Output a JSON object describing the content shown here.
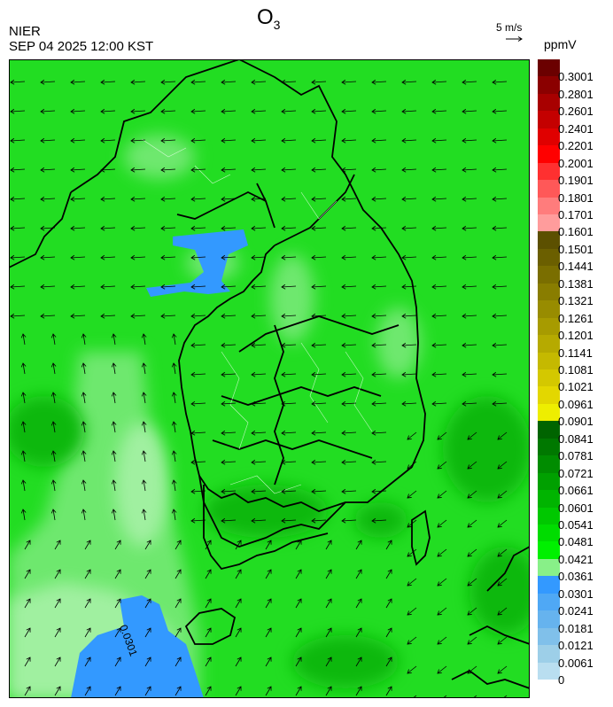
{
  "header": {
    "title_main": "O",
    "title_sub": "3",
    "agency": "NIER",
    "datetime": "SEP 04 2025 12:00 KST",
    "wind_reference": "5 m/s",
    "unit": "ppmV"
  },
  "map": {
    "contour_label": "0.0301",
    "background_color": "#22dd22"
  },
  "legend": {
    "levels": [
      {
        "label": "0.3001",
        "color": "#6b0000"
      },
      {
        "label": "0.2801",
        "color": "#8b0000"
      },
      {
        "label": "0.2601",
        "color": "#a80000"
      },
      {
        "label": "0.2401",
        "color": "#c40000"
      },
      {
        "label": "0.2201",
        "color": "#e00000"
      },
      {
        "label": "0.2001",
        "color": "#ff0000"
      },
      {
        "label": "0.1901",
        "color": "#ff3030"
      },
      {
        "label": "0.1801",
        "color": "#ff5858"
      },
      {
        "label": "0.1701",
        "color": "#ff7c7c"
      },
      {
        "label": "0.1601",
        "color": "#ff9c9c"
      },
      {
        "label": "0.1501",
        "color": "#5c5000"
      },
      {
        "label": "0.1441",
        "color": "#6b5f00"
      },
      {
        "label": "0.1381",
        "color": "#7a6e00"
      },
      {
        "label": "0.1321",
        "color": "#897d00"
      },
      {
        "label": "0.1261",
        "color": "#988c00"
      },
      {
        "label": "0.1201",
        "color": "#a79b00"
      },
      {
        "label": "0.1141",
        "color": "#b6aa00"
      },
      {
        "label": "0.1081",
        "color": "#c5b900"
      },
      {
        "label": "0.1021",
        "color": "#d4c800"
      },
      {
        "label": "0.0961",
        "color": "#e3d700"
      },
      {
        "label": "0.0901",
        "color": "#eeee00"
      },
      {
        "label": "0.0841",
        "color": "#006400"
      },
      {
        "label": "0.0781",
        "color": "#007800"
      },
      {
        "label": "0.0721",
        "color": "#008c00"
      },
      {
        "label": "0.0661",
        "color": "#00a000"
      },
      {
        "label": "0.0601",
        "color": "#00b400"
      },
      {
        "label": "0.0541",
        "color": "#00c800"
      },
      {
        "label": "0.0481",
        "color": "#00dc00"
      },
      {
        "label": "0.0421",
        "color": "#00f000"
      },
      {
        "label": "0.0361",
        "color": "#88f088"
      },
      {
        "label": "0.0301",
        "color": "#3399ff"
      },
      {
        "label": "0.0241",
        "color": "#4fa8f5"
      },
      {
        "label": "0.0181",
        "color": "#66b3ee"
      },
      {
        "label": "0.0121",
        "color": "#80c0ea"
      },
      {
        "label": "0.0061",
        "color": "#9dcfe8"
      },
      {
        "label": "0",
        "color": "#b9def0"
      }
    ]
  }
}
